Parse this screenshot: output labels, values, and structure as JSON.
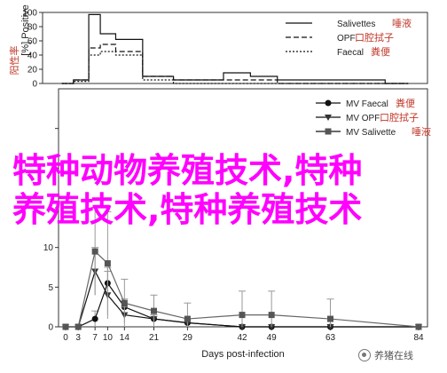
{
  "chart_data": [
    {
      "type": "line",
      "panel": "top",
      "ylabel": "阳性率",
      "ylabel_prefix": "[%] Positive",
      "ylim": [
        0,
        100
      ],
      "yticks": [
        0,
        20,
        40,
        60,
        80,
        100
      ],
      "x": [
        0,
        3,
        7,
        10,
        14,
        21,
        29,
        35,
        42,
        49,
        56,
        63,
        70,
        77,
        84
      ],
      "series": [
        {
          "name": "Salivettes",
          "cn_name": "唾液",
          "style": "solid",
          "values": [
            0,
            5,
            97,
            70,
            62,
            10,
            5,
            5,
            15,
            10,
            5,
            5,
            5,
            5,
            0
          ]
        },
        {
          "name": "OPF",
          "cn_name": "口腔拭子",
          "style": "dashed",
          "values": [
            0,
            5,
            50,
            55,
            45,
            10,
            5,
            5,
            5,
            5,
            0,
            0,
            0,
            0,
            0
          ]
        },
        {
          "name": "Faecal",
          "cn_name": "粪便",
          "style": "dotted",
          "values": [
            0,
            3,
            40,
            45,
            40,
            5,
            0,
            0,
            0,
            0,
            0,
            0,
            0,
            0,
            0
          ]
        }
      ]
    },
    {
      "type": "line",
      "panel": "bottom",
      "xlabel": "Days post-infection",
      "xticks": [
        0,
        3,
        7,
        10,
        14,
        21,
        29,
        42,
        49,
        63,
        84
      ],
      "xlim": [
        0,
        84
      ],
      "ylim": [
        0,
        15
      ],
      "yticks": [
        0,
        5,
        10
      ],
      "series": [
        {
          "name": "MV Faecal",
          "cn_name": "粪便",
          "marker": "circle",
          "x": [
            0,
            3,
            7,
            10,
            14,
            21,
            29,
            42,
            49,
            63,
            84
          ],
          "values": [
            0,
            0,
            1,
            5.5,
            2.5,
            1,
            0.5,
            0,
            0,
            0,
            0
          ],
          "err": [
            0,
            0,
            1,
            2,
            1,
            0.5,
            0.5,
            0,
            0,
            0,
            0
          ]
        },
        {
          "name": "MV OPF",
          "cn_name": "口腔拭子",
          "marker": "triangle",
          "x": [
            0,
            3,
            7,
            10,
            14,
            21,
            29,
            42,
            49,
            63,
            84
          ],
          "values": [
            0,
            0,
            7,
            4,
            1.5,
            1,
            0.5,
            0,
            0,
            0,
            0
          ],
          "err": [
            0,
            0,
            3,
            3,
            1,
            0.5,
            0.5,
            0,
            0,
            0,
            0
          ]
        },
        {
          "name": "MV Salivette",
          "cn_name": "唾液",
          "marker": "square",
          "x": [
            0,
            3,
            7,
            10,
            14,
            21,
            29,
            42,
            49,
            63,
            84
          ],
          "values": [
            0,
            0,
            9.5,
            8,
            3,
            2,
            1,
            1.5,
            1.5,
            1,
            0
          ],
          "err": [
            0,
            0,
            5.5,
            6.5,
            3,
            2,
            2,
            3,
            3,
            2.5,
            0
          ]
        }
      ]
    }
  ],
  "overlay_text": [
    "特种动物养殖技术,特种",
    "养殖技术,特种养殖技术"
  ],
  "watermark": "养猪在线"
}
